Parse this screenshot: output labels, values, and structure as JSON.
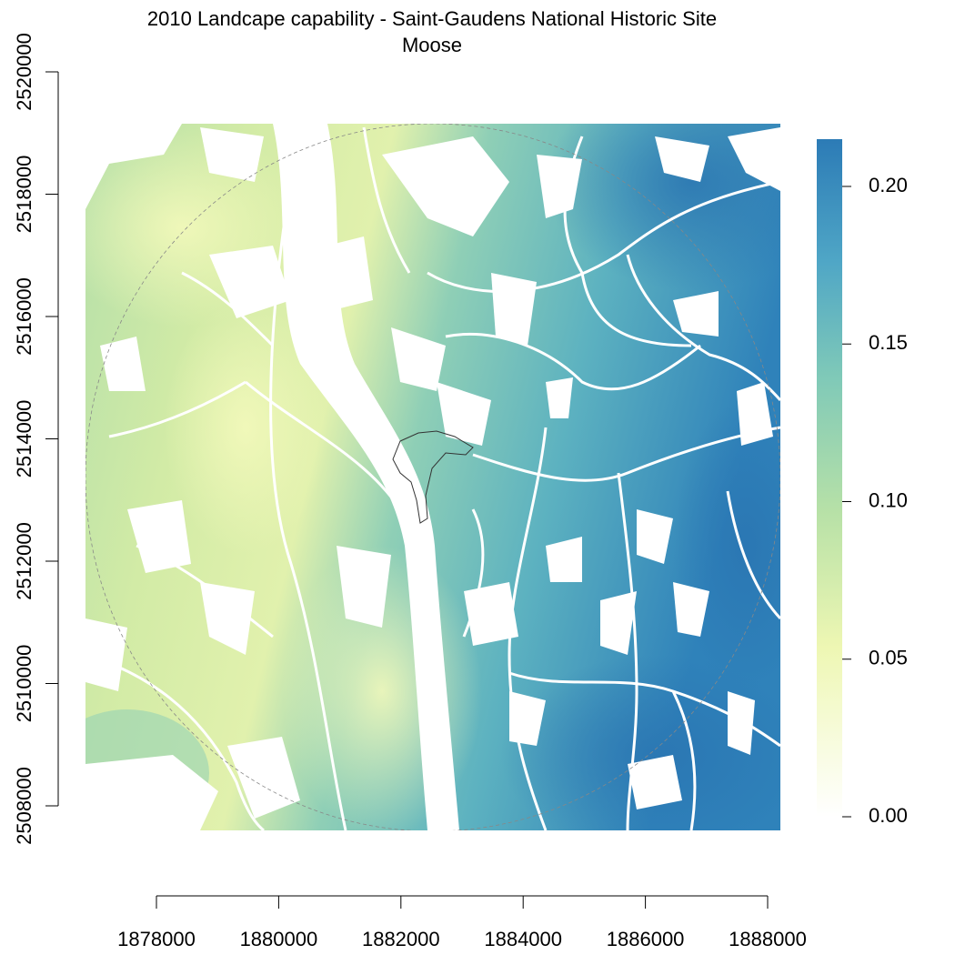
{
  "title": "2010 Landcape capability - Saint-Gaudens National Historic Site",
  "subtitle": "Moose",
  "x_axis": {
    "ticks": [
      "1878000",
      "1880000",
      "1882000",
      "1884000",
      "1886000",
      "1888000"
    ]
  },
  "y_axis": {
    "ticks": [
      "2508000",
      "2510000",
      "2512000",
      "2514000",
      "2516000",
      "2518000",
      "2520000"
    ]
  },
  "legend": {
    "ticks": [
      "0.00",
      "0.05",
      "0.10",
      "0.15",
      "0.20"
    ],
    "range": [
      0,
      0.215
    ],
    "colors": [
      "#ffffff",
      "#eef7b3",
      "#b7e1a7",
      "#7fc9b8",
      "#4fa6c6",
      "#2c7bb6"
    ]
  },
  "raster": {
    "xlim": [
      1877000,
      1888200
    ],
    "ylim": [
      2507600,
      2519200
    ],
    "low_color": "#e8f5b0",
    "mid_color": "#8fd0b2",
    "high_color": "#2f80ba"
  }
}
